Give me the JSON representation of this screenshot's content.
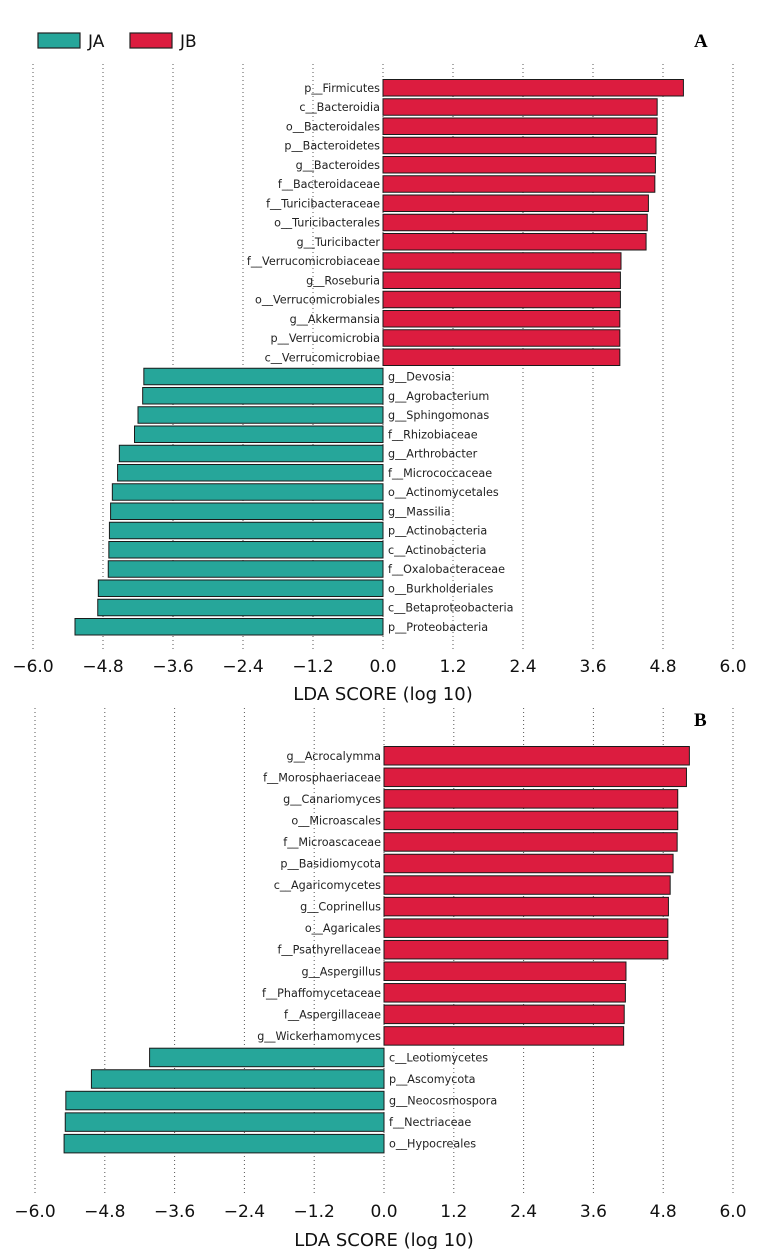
{
  "colors": {
    "JA": "#26A69A",
    "JB": "#DC1C3F"
  },
  "legend": [
    {
      "name": "JA",
      "color": "#26A69A"
    },
    {
      "name": "JB",
      "color": "#DC1C3F"
    }
  ],
  "chart_data": [
    {
      "type": "bar",
      "orientation": "horizontal",
      "panel_label": "A",
      "xlabel": "LDA SCORE (log 10)",
      "ylabel": "",
      "xlim": [
        -6.0,
        6.0
      ],
      "xticks": [
        "-6.0",
        "-4.8",
        "-3.6",
        "-2.4",
        "-1.2",
        "0.0",
        "1.2",
        "2.4",
        "3.6",
        "4.8",
        "6.0"
      ],
      "grid": true,
      "legend_position": "top-left",
      "series": [
        {
          "name": "JB",
          "color": "#DC1C3F"
        },
        {
          "name": "JA",
          "color": "#26A69A"
        }
      ],
      "bars": [
        {
          "label": "p__Firmicutes",
          "value": 5.15,
          "group": "JB"
        },
        {
          "label": "c__Bacteroidia",
          "value": 4.7,
          "group": "JB"
        },
        {
          "label": "o__Bacteroidales",
          "value": 4.7,
          "group": "JB"
        },
        {
          "label": "p__Bacteroidetes",
          "value": 4.68,
          "group": "JB"
        },
        {
          "label": "g__Bacteroides",
          "value": 4.67,
          "group": "JB"
        },
        {
          "label": "f__Bacteroidaceae",
          "value": 4.66,
          "group": "JB"
        },
        {
          "label": "f__Turicibacteraceae",
          "value": 4.55,
          "group": "JB"
        },
        {
          "label": "o__Turicibacterales",
          "value": 4.53,
          "group": "JB"
        },
        {
          "label": "g__Turicibacter",
          "value": 4.51,
          "group": "JB"
        },
        {
          "label": "f__Verrucomicrobiaceae",
          "value": 4.08,
          "group": "JB"
        },
        {
          "label": "g__Roseburia",
          "value": 4.07,
          "group": "JB"
        },
        {
          "label": "o__Verrucomicrobiales",
          "value": 4.07,
          "group": "JB"
        },
        {
          "label": "g__Akkermansia",
          "value": 4.06,
          "group": "JB"
        },
        {
          "label": "p__Verrucomicrobia",
          "value": 4.06,
          "group": "JB"
        },
        {
          "label": "c__Verrucomicrobiae",
          "value": 4.06,
          "group": "JB"
        },
        {
          "label": "g__Devosia",
          "value": -4.1,
          "group": "JA"
        },
        {
          "label": "g__Agrobacterium",
          "value": -4.12,
          "group": "JA"
        },
        {
          "label": "g__Sphingomonas",
          "value": -4.2,
          "group": "JA"
        },
        {
          "label": "f__Rhizobiaceae",
          "value": -4.26,
          "group": "JA"
        },
        {
          "label": "g__Arthrobacter",
          "value": -4.52,
          "group": "JA"
        },
        {
          "label": "f__Micrococcaceae",
          "value": -4.55,
          "group": "JA"
        },
        {
          "label": "o__Actinomycetales",
          "value": -4.64,
          "group": "JA"
        },
        {
          "label": "g__Massilia",
          "value": -4.67,
          "group": "JA"
        },
        {
          "label": "p__Actinobacteria",
          "value": -4.69,
          "group": "JA"
        },
        {
          "label": "c__Actinobacteria",
          "value": -4.7,
          "group": "JA"
        },
        {
          "label": "f__Oxalobacteraceae",
          "value": -4.71,
          "group": "JA"
        },
        {
          "label": "o__Burkholderiales",
          "value": -4.88,
          "group": "JA"
        },
        {
          "label": "c__Betaproteobacteria",
          "value": -4.89,
          "group": "JA"
        },
        {
          "label": "p__Proteobacteria",
          "value": -5.28,
          "group": "JA"
        }
      ]
    },
    {
      "type": "bar",
      "orientation": "horizontal",
      "panel_label": "B",
      "xlabel": "LDA SCORE (log 10)",
      "ylabel": "",
      "xlim": [
        -6.0,
        6.0
      ],
      "xticks": [
        "-6.0",
        "-4.8",
        "-3.6",
        "-2.4",
        "-1.2",
        "0.0",
        "1.2",
        "2.4",
        "3.6",
        "4.8",
        "6.0"
      ],
      "grid": true,
      "series": [
        {
          "name": "JB",
          "color": "#DC1C3F"
        },
        {
          "name": "JA",
          "color": "#26A69A"
        }
      ],
      "bars": [
        {
          "label": "g__Acrocalymma",
          "value": 5.25,
          "group": "JB"
        },
        {
          "label": "f__Morosphaeriaceae",
          "value": 5.2,
          "group": "JB"
        },
        {
          "label": "g__Canariomyces",
          "value": 5.05,
          "group": "JB"
        },
        {
          "label": "o__Microascales",
          "value": 5.05,
          "group": "JB"
        },
        {
          "label": "f__Microascaceae",
          "value": 5.04,
          "group": "JB"
        },
        {
          "label": "p__Basidiomycota",
          "value": 4.97,
          "group": "JB"
        },
        {
          "label": "c__Agaricomycetes",
          "value": 4.92,
          "group": "JB"
        },
        {
          "label": "g__Coprinellus",
          "value": 4.89,
          "group": "JB"
        },
        {
          "label": "o__Agaricales",
          "value": 4.88,
          "group": "JB"
        },
        {
          "label": "f__Psathyrellaceae",
          "value": 4.88,
          "group": "JB"
        },
        {
          "label": "g__Aspergillus",
          "value": 4.16,
          "group": "JB"
        },
        {
          "label": "f__Phaffomycetaceae",
          "value": 4.15,
          "group": "JB"
        },
        {
          "label": "f__Aspergillaceae",
          "value": 4.13,
          "group": "JB"
        },
        {
          "label": "g__Wickerhamomyces",
          "value": 4.12,
          "group": "JB"
        },
        {
          "label": "c__Leotiomycetes",
          "value": -4.03,
          "group": "JA"
        },
        {
          "label": "p__Ascomycota",
          "value": -5.03,
          "group": "JA"
        },
        {
          "label": "g__Neocosmospora",
          "value": -5.47,
          "group": "JA"
        },
        {
          "label": "f__Nectriaceae",
          "value": -5.48,
          "group": "JA"
        },
        {
          "label": "o__Hypocreales",
          "value": -5.5,
          "group": "JA"
        }
      ]
    }
  ]
}
